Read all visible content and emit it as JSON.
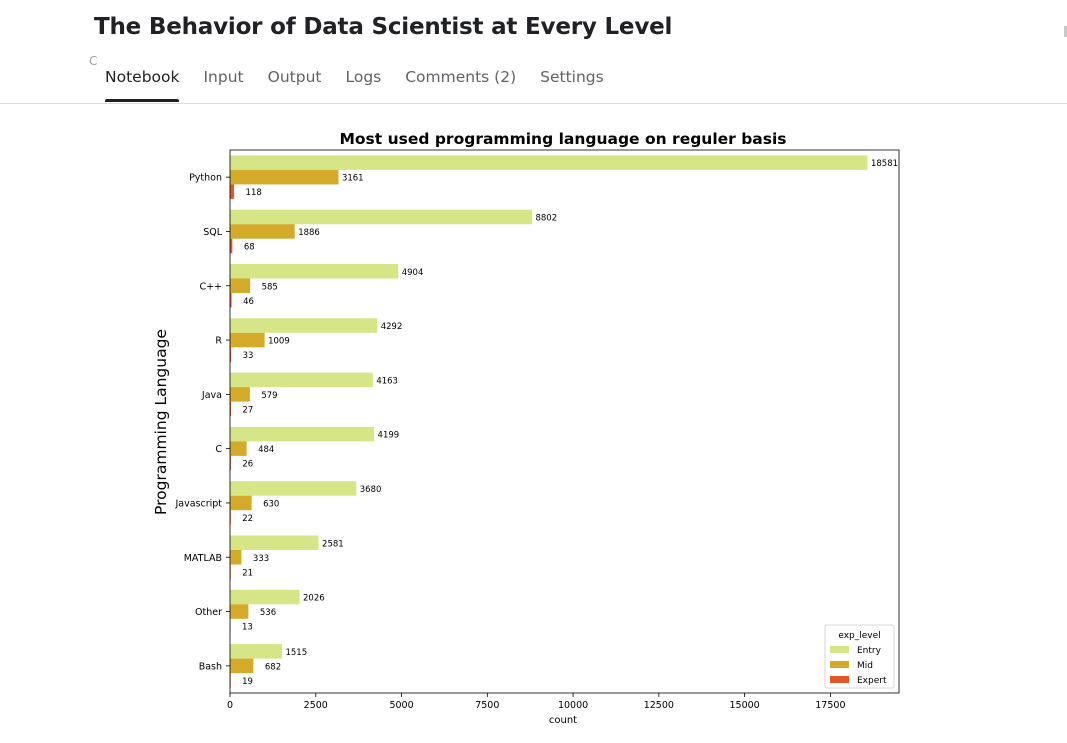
{
  "page": {
    "title": "The Behavior of Data Scientist at Every Level",
    "stray_glyph": "C"
  },
  "tabs": [
    {
      "label": "Notebook",
      "active": true
    },
    {
      "label": "Input",
      "active": false
    },
    {
      "label": "Output",
      "active": false
    },
    {
      "label": "Logs",
      "active": false
    },
    {
      "label": "Comments (2)",
      "active": false
    },
    {
      "label": "Settings",
      "active": false
    }
  ],
  "chart_data": {
    "type": "bar",
    "orientation": "horizontal",
    "title": "Most used programming language on reguler basis",
    "xlabel": "count",
    "ylabel": "Programming Language",
    "xlim": [
      0,
      19500
    ],
    "xticks": [
      0,
      2500,
      5000,
      7500,
      10000,
      12500,
      15000,
      17500
    ],
    "categories": [
      "Python",
      "SQL",
      "C++",
      "R",
      "Java",
      "C",
      "Javascript",
      "MATLAB",
      "Other",
      "Bash"
    ],
    "series": [
      {
        "name": "Entry",
        "color": "#d6e585",
        "values": [
          18581,
          8802,
          4904,
          4292,
          4163,
          4199,
          3680,
          2581,
          2026,
          1515
        ]
      },
      {
        "name": "Mid",
        "color": "#d4aa2b",
        "values": [
          3161,
          1886,
          585,
          1009,
          579,
          484,
          630,
          333,
          536,
          682
        ]
      },
      {
        "name": "Expert",
        "color": "#e0582a",
        "values": [
          118,
          68,
          46,
          33,
          27,
          26,
          22,
          21,
          13,
          19
        ]
      }
    ],
    "legend": {
      "title": "exp_level",
      "placement": "bottom-right"
    },
    "grid": false
  }
}
